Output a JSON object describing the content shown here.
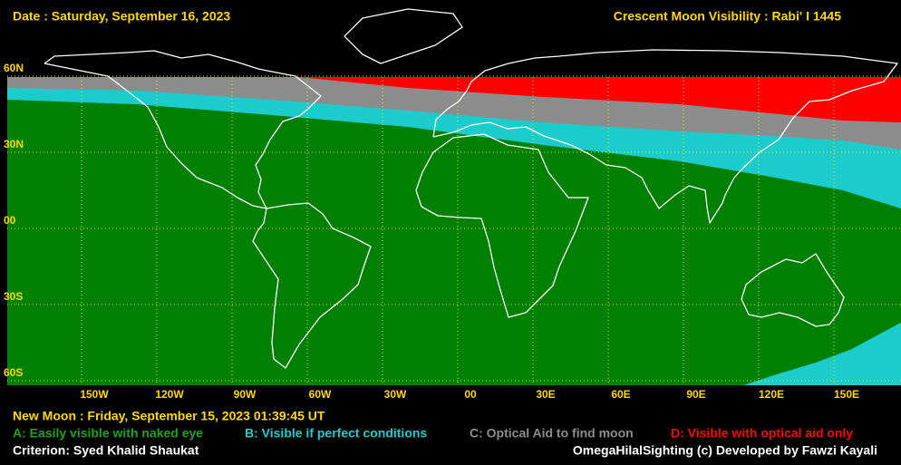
{
  "header": {
    "date": "Date : Saturday, September 16, 2023",
    "title": "Crescent Moon Visibility : Rabi' I  1445"
  },
  "map": {
    "lat_labels": [
      "60N",
      "30N",
      "00",
      "30S",
      "60S"
    ],
    "lon_labels": [
      "150W",
      "120W",
      "90W",
      "60W",
      "30W",
      "00",
      "30E",
      "60E",
      "90E",
      "120E",
      "150E"
    ]
  },
  "footer": {
    "new_moon": "New Moon : Friday, September 15, 2023  01:39:45  UT",
    "criterion": "Criterion: Syed Khalid Shaukat",
    "credit": "OmegaHilalSighting  (c)  Developed by Fawzi Kayali"
  },
  "legend": [
    {
      "text": "A: Easily visible with naked eye",
      "color": "#008000"
    },
    {
      "text": "B: Visible if perfect conditions",
      "color": "#1ccccc"
    },
    {
      "text": "C: Optical Aid to find moon",
      "color": "#8c8c8c"
    },
    {
      "text": "D: Visible with optical aid only",
      "color": "#ff0000"
    }
  ]
}
